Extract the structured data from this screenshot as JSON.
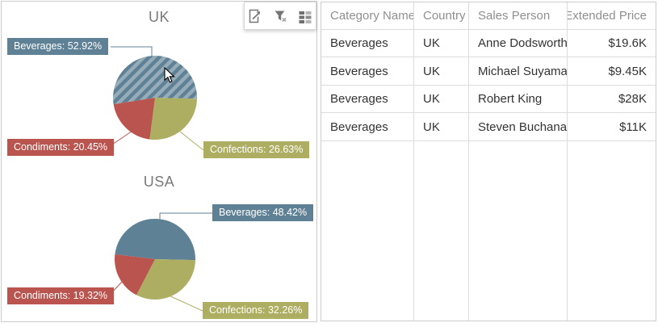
{
  "toolbar": {
    "icons": [
      {
        "name": "export-icon"
      },
      {
        "name": "clear-filter-icon"
      },
      {
        "name": "values-icon"
      }
    ]
  },
  "chart_data": [
    {
      "type": "pie",
      "title": "UK",
      "categories": [
        "Beverages",
        "Confections",
        "Condiments"
      ],
      "values": [
        52.92,
        26.63,
        20.45
      ],
      "unit": "percent",
      "labels": [
        "Beverages: 52.92%",
        "Confections: 26.63%",
        "Condiments: 20.45%"
      ],
      "colors": [
        "#5f8195",
        "#aeae62",
        "#b9544f"
      ],
      "selected_category": "Beverages",
      "legend": "none",
      "label_position": "outside-callout"
    },
    {
      "type": "pie",
      "title": "USA",
      "categories": [
        "Beverages",
        "Confections",
        "Condiments"
      ],
      "values": [
        48.42,
        32.26,
        19.32
      ],
      "unit": "percent",
      "labels": [
        "Beverages: 48.42%",
        "Confections: 32.26%",
        "Condiments: 19.32%"
      ],
      "colors": [
        "#5f8195",
        "#aeae62",
        "#b9544f"
      ],
      "selected_category": null,
      "legend": "none",
      "label_position": "outside-callout"
    }
  ],
  "grid": {
    "columns": [
      "Category Name",
      "Country",
      "Sales Person",
      "Extended Price"
    ],
    "align": [
      "left",
      "left",
      "left",
      "right"
    ],
    "rows": [
      [
        "Beverages",
        "UK",
        "Anne Dodsworth",
        "$19.6K"
      ],
      [
        "Beverages",
        "UK",
        "Michael Suyama",
        "$9.45K"
      ],
      [
        "Beverages",
        "UK",
        "Robert King",
        "$28K"
      ],
      [
        "Beverages",
        "UK",
        "Steven Buchanan",
        "$11K"
      ]
    ]
  },
  "cursor": {
    "visible": true,
    "shape": "arrow"
  }
}
